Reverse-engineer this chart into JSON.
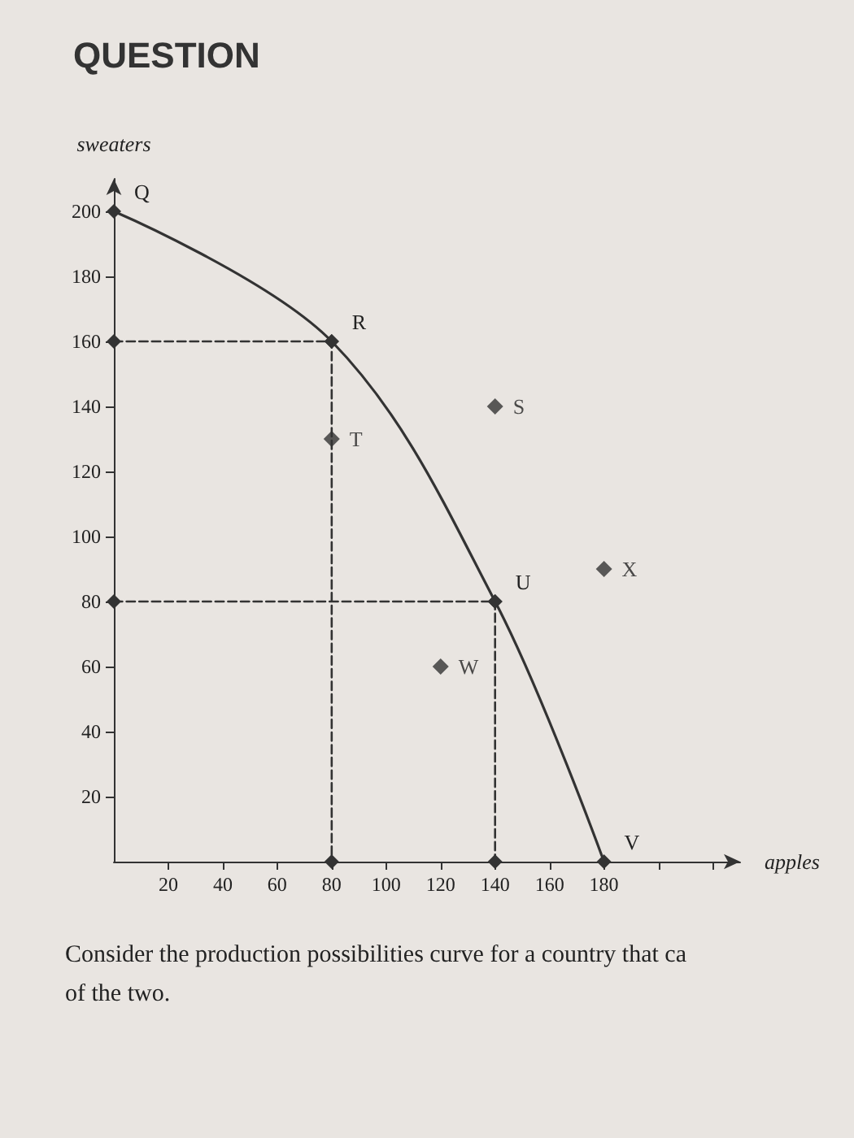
{
  "chart_data": {
    "type": "line",
    "title": "QUESTION",
    "xlabel": "apples",
    "ylabel": "sweaters",
    "xlim": [
      0,
      230
    ],
    "xticks": [
      20,
      40,
      60,
      80,
      100,
      120,
      140,
      160,
      180,
      {
        "value": 200,
        "label": null
      },
      {
        "value": 220,
        "label": null
      }
    ],
    "ylim": [
      0,
      210
    ],
    "yticks": [
      20,
      40,
      60,
      80,
      100,
      120,
      140,
      160,
      180,
      200
    ],
    "grid": false,
    "series": [
      {
        "color": "#333333",
        "marker": "diamond",
        "line_style": "solid",
        "x": [
          0,
          80,
          140,
          180
        ],
        "values": [
          200,
          160,
          80,
          0
        ],
        "value_labels": [
          "Q",
          "R",
          "U",
          "V"
        ]
      },
      {
        "type": "line",
        "color": "#333333",
        "marker": "diamond",
        "line_style": "dashed",
        "x": [
          0,
          80,
          80
        ],
        "values": [
          160,
          160,
          0
        ]
      },
      {
        "type": "line",
        "color": "#333333",
        "marker": "diamond",
        "line_style": "dashed",
        "x": [
          0,
          140,
          140
        ],
        "values": [
          80,
          80,
          0
        ]
      },
      {
        "type": "scatter",
        "color": "#333333",
        "marker": "diamond",
        "x": [
          140,
          80,
          120,
          180
        ],
        "values": [
          140,
          130,
          60,
          90
        ],
        "value_labels": [
          "S",
          "T",
          "W",
          "X"
        ]
      }
    ],
    "annotations": [
      "Consider the production possibilities curve for a country that ca",
      "of the two."
    ]
  }
}
